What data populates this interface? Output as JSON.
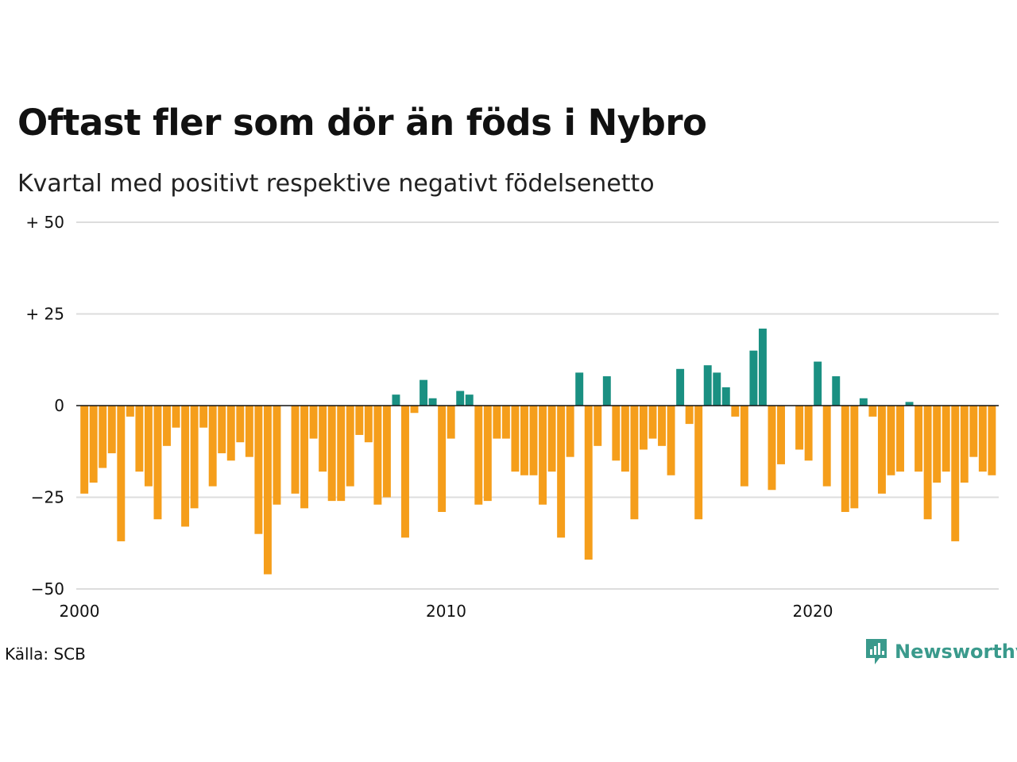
{
  "title": "Oftast fler som dör än föds i Nybro",
  "subtitle": "Kvartal med positivt respektive negativt födelsenetto",
  "source": "Källa: SCB",
  "brand": {
    "name": "Newsworthy",
    "icon": "newsworthy-logo-icon",
    "color": "#3a9a8c"
  },
  "colors": {
    "positive": "#1a9082",
    "negative": "#f59e1b",
    "grid": "#dddddd",
    "zero_line": "#111111"
  },
  "chart_data": {
    "type": "bar",
    "title": "Oftast fler som dör än föds i Nybro",
    "subtitle": "Kvartal med positivt respektive negativt födelsenetto",
    "xlabel": "",
    "ylabel": "",
    "ylim": [
      -50,
      50
    ],
    "yticks": [
      {
        "value": 50,
        "label": "+ 50"
      },
      {
        "value": 25,
        "label": "+ 25"
      },
      {
        "value": 0,
        "label": "0"
      },
      {
        "value": -25,
        "label": "−25"
      },
      {
        "value": -50,
        "label": "−50"
      }
    ],
    "xticks": [
      {
        "value": 2000,
        "label": "2000"
      },
      {
        "value": 2010,
        "label": "2010"
      },
      {
        "value": 2020,
        "label": "2020"
      }
    ],
    "x_start": 2000,
    "periods_per_year": 4,
    "grid": true,
    "values": [
      -24,
      -21,
      -17,
      -13,
      -37,
      -3,
      -18,
      -22,
      -31,
      -11,
      -6,
      -33,
      -28,
      -6,
      -22,
      -13,
      -15,
      -10,
      -14,
      -35,
      -46,
      -27,
      0,
      -24,
      -28,
      -9,
      -18,
      -26,
      -26,
      -22,
      -8,
      -10,
      -27,
      -25,
      3,
      -36,
      -2,
      7,
      2,
      -29,
      -9,
      4,
      3,
      -27,
      -26,
      -9,
      -9,
      -18,
      -19,
      -19,
      -27,
      -18,
      -36,
      -14,
      9,
      -42,
      -11,
      8,
      -15,
      -18,
      -31,
      -12,
      -9,
      -11,
      -19,
      10,
      -5,
      -31,
      11,
      9,
      5,
      -3,
      -22,
      15,
      21,
      -23,
      -16,
      0,
      -12,
      -15,
      12,
      -22,
      8,
      -29,
      -28,
      2,
      -3,
      -24,
      -19,
      -18,
      1,
      -18,
      -31,
      -21,
      -18,
      -37,
      -21,
      -14,
      -18,
      -19
    ]
  }
}
